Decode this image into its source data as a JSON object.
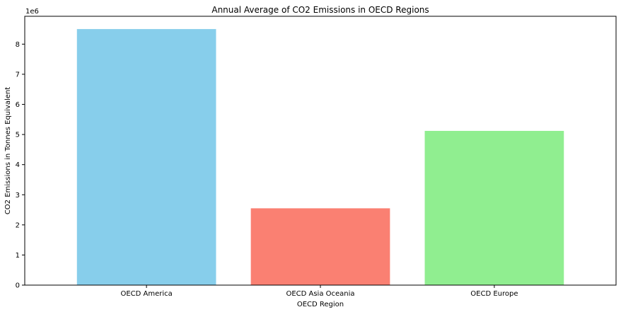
{
  "chart_data": {
    "type": "bar",
    "title": "Annual Average of CO2 Emissions in OECD Regions",
    "xlabel": "OECD Region",
    "ylabel": "CO2 Emissions in Tonnes Equivalent",
    "y_offset_label": "1e6",
    "categories": [
      "OECD America",
      "OECD Asia Oceania",
      "OECD Europe"
    ],
    "values": [
      8500000,
      2550000,
      5120000
    ],
    "colors": [
      "#87ceeb",
      "#fa8072",
      "#90ee90"
    ],
    "ylim": [
      0,
      8925000
    ],
    "yticks": [
      0,
      1000000,
      2000000,
      3000000,
      4000000,
      5000000,
      6000000,
      7000000,
      8000000
    ],
    "ytick_labels": [
      "0",
      "1",
      "2",
      "3",
      "4",
      "5",
      "6",
      "7",
      "8"
    ],
    "grid": false,
    "legend": "none"
  }
}
